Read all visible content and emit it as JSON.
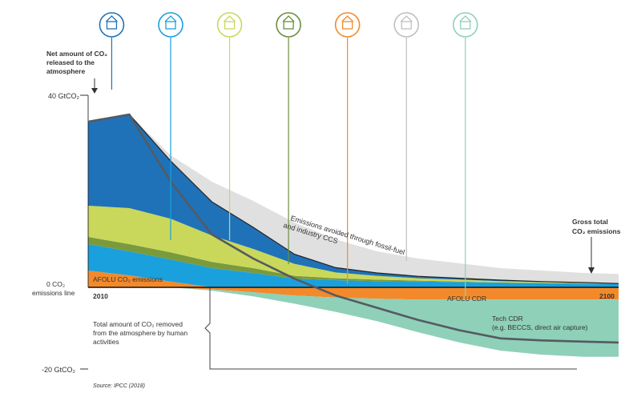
{
  "chart_data": {
    "type": "area",
    "x_start_label": "2010",
    "x_end_label": "2100",
    "x_range": [
      2010,
      2100
    ],
    "ylim": [
      -20,
      40
    ],
    "y_tick_labels": [
      {
        "value": 40,
        "label": "40 GtCO₂"
      },
      {
        "value": 0,
        "label": "0 CO₂\nemissions line"
      },
      {
        "value": -20,
        "label": "-20 GtCO₂"
      }
    ],
    "x": [
      2010,
      2017,
      2024,
      2031,
      2038,
      2045,
      2052,
      2059,
      2066,
      2073,
      2080,
      2087,
      2094,
      2100
    ],
    "series": [
      {
        "name": "AFOLU CO₂ emissions",
        "color": "#f28a2c",
        "values": [
          3.5,
          2.5,
          1.2,
          0,
          0,
          0,
          0,
          0,
          0,
          0,
          0,
          0,
          0,
          0
        ]
      },
      {
        "color": "#1aa0dc",
        "values": [
          5.5,
          5.0,
          4.6,
          4.0,
          3.0,
          1.8,
          1.5,
          1.3,
          1.2,
          1.1,
          1.0,
          0.9,
          0.8,
          0.8
        ]
      },
      {
        "color": "#7a9a3c",
        "values": [
          1.5,
          1.5,
          1.5,
          1.3,
          1.0,
          0.6,
          0.4,
          0.3,
          0.2,
          0.1,
          0,
          0,
          0,
          0
        ]
      },
      {
        "color": "#c9d85a",
        "values": [
          6.5,
          7.5,
          7.0,
          5.5,
          4.0,
          2.5,
          1.2,
          0.8,
          0.5,
          0.4,
          0.3,
          0.2,
          0.1,
          0
        ]
      },
      {
        "color": "#1f72b8",
        "values": [
          17.5,
          19.5,
          12.0,
          7.0,
          4.5,
          2.0,
          1.0,
          0.6,
          0.4,
          0.3,
          0.2,
          0.1,
          0.1,
          0
        ]
      }
    ],
    "emissions_avoided": {
      "label": "Emissions avoided through fossil-fuel and industry CCS",
      "color": "#e0e0e0",
      "upper": [
        34.5,
        36.0,
        27.5,
        22.0,
        18.0,
        13.5,
        10.0,
        7.5,
        6.0,
        5.0,
        4.0,
        3.5,
        3.0,
        2.8
      ]
    },
    "gross_total": {
      "label": "Gross total CO₂ emissions",
      "values": [
        34.5,
        36.0,
        26.3,
        17.8,
        12.5,
        6.9,
        4.1,
        3.0,
        2.3,
        1.9,
        1.5,
        1.2,
        1.0,
        0.8
      ]
    },
    "afolu_cdr": {
      "label": "AFOLU CDR",
      "color": "#f28a2c",
      "values": [
        0,
        0,
        0,
        -0.5,
        -1.2,
        -2.0,
        -2.5,
        -2.8,
        -3.0,
        -3.0,
        -3.0,
        -3.0,
        -3.0,
        -3.0
      ]
    },
    "tech_cdr": {
      "label": "Tech CDR\n(e.g. BECCS, direct air capture)",
      "color": "#8fd0b8",
      "values": [
        0,
        0,
        0,
        -0.3,
        -1.0,
        -2.0,
        -3.5,
        -5.5,
        -8.0,
        -10.5,
        -12.5,
        -13.5,
        -14.0,
        -14.0
      ]
    },
    "net_line": {
      "label": "Net amount of CO₂ released to the atmosphere",
      "color": "#555a60",
      "values": [
        34.5,
        36.0,
        22.0,
        11.0,
        6.0,
        1.8,
        -2.0,
        -5.0,
        -8.0,
        -10.5,
        -12.5,
        -13.0,
        -13.3,
        -13.5
      ]
    },
    "removed_bracket_label": "Total amount of CO₂ removed\nfrom the atmosphere by human\nactivities",
    "annotations": {
      "afolu_emissions": "AFOLU CO₂ emissions"
    },
    "icons": [
      {
        "name": "energy-icon",
        "color": "#1f72b8",
        "x": 2014
      },
      {
        "name": "industry-icon",
        "color": "#1aa0dc",
        "x": 2024
      },
      {
        "name": "buildings-icon",
        "color": "#c9d85a",
        "x": 2034
      },
      {
        "name": "transport-icon",
        "color": "#6b8e3a",
        "x": 2044
      },
      {
        "name": "afolu-icon",
        "color": "#f28a2c",
        "x": 2054
      },
      {
        "name": "ccs-factory-icon",
        "color": "#bfbfbf",
        "x": 2064
      },
      {
        "name": "cdr-icon",
        "color": "#8fd0b8",
        "x": 2074
      }
    ],
    "source": "Source: IPCC (2018)",
    "grid": false,
    "legend": "none"
  }
}
